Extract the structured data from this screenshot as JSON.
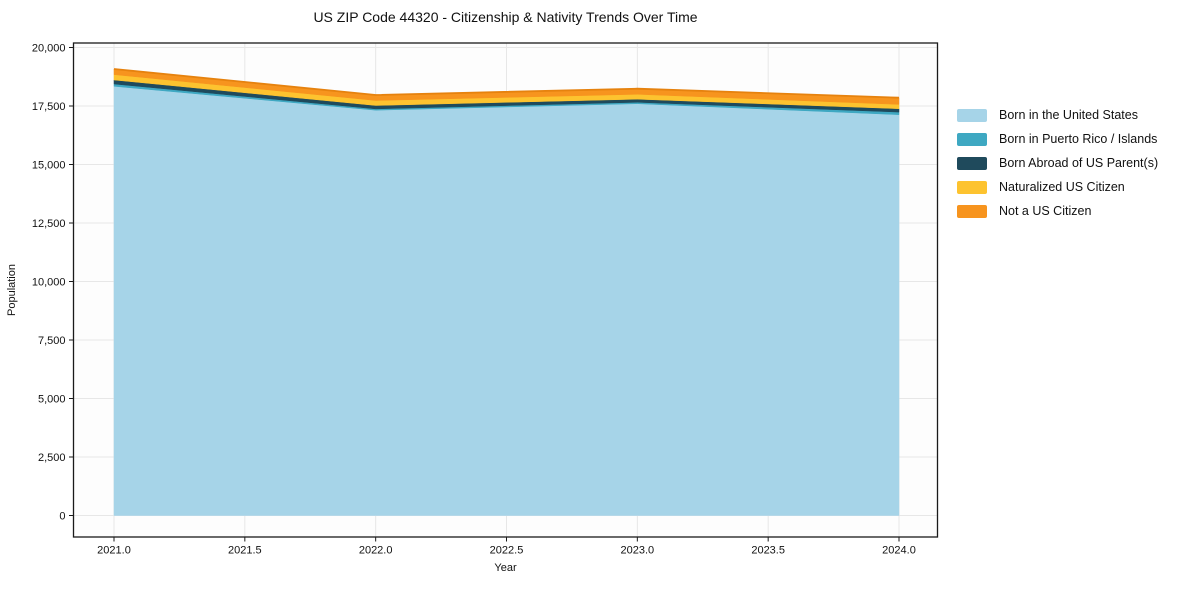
{
  "chart_data": {
    "type": "area",
    "stacked": true,
    "title": "US ZIP Code 44320 - Citizenship & Nativity Trends Over Time",
    "xlabel": "Year",
    "ylabel": "Population",
    "x": [
      2021,
      2022,
      2023,
      2024
    ],
    "series": [
      {
        "name": "Born in the United States",
        "color": "#A6D4E8",
        "values": [
          18340,
          17320,
          17600,
          17130
        ]
      },
      {
        "name": "Born in Puerto Rico / Islands",
        "color": "#3EA8C2",
        "values": [
          100,
          55,
          60,
          110
        ]
      },
      {
        "name": "Born Abroad of US Parent(s)",
        "color": "#1F4A5C",
        "values": [
          170,
          145,
          130,
          145
        ]
      },
      {
        "name": "Naturalized US Citizen",
        "color": "#FDC32F",
        "values": [
          230,
          215,
          210,
          185
        ]
      },
      {
        "name": "Not a US Citizen",
        "color": "#F7941E",
        "values": [
          240,
          235,
          240,
          285
        ]
      }
    ],
    "stack_totals": [
      19080,
      17970,
      18240,
      17855
    ],
    "xticks": [
      2021.0,
      2021.5,
      2022.0,
      2022.5,
      2023.0,
      2023.5,
      2024.0
    ],
    "xtick_labels": [
      "2021.0",
      "2021.5",
      "2022.0",
      "2022.5",
      "2023.0",
      "2023.5",
      "2024.0"
    ],
    "yticks": [
      0,
      2500,
      5000,
      7500,
      10000,
      12500,
      15000,
      17500,
      20000
    ],
    "ytick_labels": [
      "0",
      "2,500",
      "5,000",
      "7,500",
      "10,000",
      "12,500",
      "15,000",
      "17,500",
      "20,000"
    ],
    "xlim": [
      2020.85,
      2024.15
    ],
    "ylim": [
      0,
      20000
    ],
    "grid": true,
    "legend_position": "right-outside",
    "colors": {
      "spine": "#1a1a1a",
      "grid": "#e7e7e7",
      "plot_background": "#fdfdfd",
      "top_edge": "#E6820E",
      "text": "#111111"
    }
  }
}
